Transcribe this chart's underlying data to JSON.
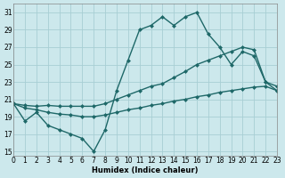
{
  "xlabel": "Humidex (Indice chaleur)",
  "xlim": [
    0,
    23
  ],
  "ylim": [
    14.5,
    32.0
  ],
  "xticks": [
    0,
    1,
    2,
    3,
    4,
    5,
    6,
    7,
    8,
    9,
    10,
    11,
    12,
    13,
    14,
    15,
    16,
    17,
    18,
    19,
    20,
    21,
    22,
    23
  ],
  "yticks": [
    15,
    17,
    19,
    21,
    23,
    25,
    27,
    29,
    31
  ],
  "bg_color": "#cce8ec",
  "grid_color": "#a8ced4",
  "line_color": "#1e6868",
  "line1_y": [
    20.5,
    18.5,
    19.5,
    18.0,
    17.5,
    17.0,
    16.5,
    15.0,
    17.5,
    22.0,
    25.5,
    29.0,
    29.5,
    30.5,
    29.5,
    30.5,
    31.0,
    28.5,
    27.0,
    25.0,
    26.5,
    26.0,
    23.0,
    22.0
  ],
  "line2_y": [
    20.5,
    20.3,
    20.2,
    20.3,
    20.2,
    20.2,
    20.2,
    20.2,
    20.5,
    21.0,
    21.5,
    22.0,
    22.5,
    22.8,
    23.5,
    24.2,
    25.0,
    25.5,
    26.0,
    26.5,
    27.0,
    26.7,
    23.0,
    22.5
  ],
  "line3_y": [
    20.5,
    20.0,
    19.8,
    19.5,
    19.3,
    19.2,
    19.0,
    19.0,
    19.2,
    19.5,
    19.8,
    20.0,
    20.3,
    20.5,
    20.8,
    21.0,
    21.3,
    21.5,
    21.8,
    22.0,
    22.2,
    22.4,
    22.5,
    22.0
  ],
  "linewidth": 1.0,
  "marker_size": 2.5
}
